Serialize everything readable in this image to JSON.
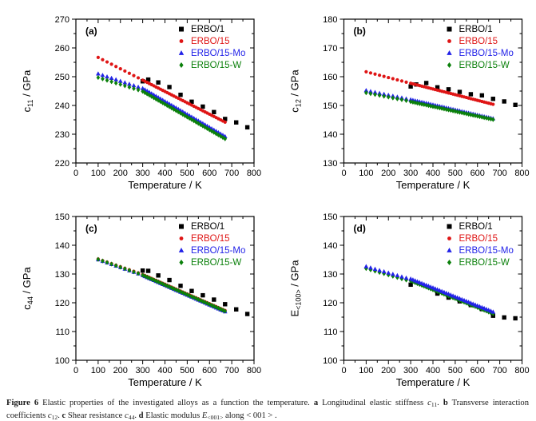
{
  "colors": {
    "axis": "#000000",
    "black": "#000000",
    "red": "#df1515",
    "blue": "#2222e8",
    "green": "#0b800b"
  },
  "legend": [
    {
      "label": "ERBO/1",
      "marker": "square",
      "color_key": "black"
    },
    {
      "label": "ERBO/15",
      "marker": "circle",
      "color_key": "red"
    },
    {
      "label": "ERBO/15-Mo",
      "marker": "triangle",
      "color_key": "blue"
    },
    {
      "label": "ERBO/15-W",
      "marker": "diamond",
      "color_key": "green"
    }
  ],
  "chart_data": [
    {
      "type": "scatter",
      "panel_label": "(a)",
      "title": "Longitudinal elastic stiffness c11 vs temperature",
      "xlabel": "Temperature / K",
      "ylabel": {
        "base": "c",
        "sub": "11",
        "unit": " / GPa"
      },
      "xlim": [
        0,
        800
      ],
      "ylim": [
        220,
        270
      ],
      "xticks": [
        0,
        100,
        200,
        300,
        400,
        500,
        600,
        700,
        800
      ],
      "yticks": [
        220,
        230,
        240,
        250,
        260,
        270
      ],
      "x_minor_step": 50,
      "y_minor_step": 5,
      "grid": false,
      "legend_position": "top-right",
      "series": [
        {
          "name": "ERBO/1",
          "marker": "square",
          "color_key": "black",
          "points": [
            [
              300,
              248.4
            ],
            [
              325,
              249.0
            ],
            [
              370,
              248.0
            ],
            [
              420,
              246.4
            ],
            [
              470,
              243.7
            ],
            [
              520,
              241.3
            ],
            [
              570,
              239.6
            ],
            [
              620,
              237.7
            ],
            [
              670,
              235.3
            ],
            [
              720,
              234.1
            ],
            [
              770,
              232.4
            ]
          ]
        },
        {
          "name": "ERBO/15",
          "marker": "circle",
          "color_key": "red",
          "segments": [
            {
              "x0": 100,
              "x1": 280,
              "step": 20,
              "y0": 256.7,
              "y1": 249.6
            },
            {
              "x0": 300,
              "x1": 670,
              "step": 10,
              "y0": 248.8,
              "y1": 234.2
            }
          ]
        },
        {
          "name": "ERBO/15-Mo",
          "marker": "triangle",
          "color_key": "blue",
          "segments": [
            {
              "x0": 100,
              "x1": 280,
              "step": 20,
              "y0": 251.0,
              "y1": 246.4
            },
            {
              "x0": 300,
              "x1": 670,
              "step": 10,
              "y0": 245.9,
              "y1": 229.2
            }
          ]
        },
        {
          "name": "ERBO/15-W",
          "marker": "diamond",
          "color_key": "green",
          "segments": [
            {
              "x0": 100,
              "x1": 280,
              "step": 20,
              "y0": 249.7,
              "y1": 245.4
            },
            {
              "x0": 300,
              "x1": 670,
              "step": 10,
              "y0": 244.9,
              "y1": 228.4
            }
          ]
        }
      ]
    },
    {
      "type": "scatter",
      "panel_label": "(b)",
      "title": "Transverse interaction coefficient c12 vs temperature",
      "xlabel": "Temperature / K",
      "ylabel": {
        "base": "c",
        "sub": "12",
        "unit": " / GPa"
      },
      "xlim": [
        0,
        800
      ],
      "ylim": [
        130,
        180
      ],
      "xticks": [
        0,
        100,
        200,
        300,
        400,
        500,
        600,
        700,
        800
      ],
      "yticks": [
        130,
        140,
        150,
        160,
        170,
        180
      ],
      "x_minor_step": 50,
      "y_minor_step": 5,
      "grid": false,
      "legend_position": "top-right",
      "series": [
        {
          "name": "ERBO/1",
          "marker": "square",
          "color_key": "black",
          "points": [
            [
              300,
              156.6
            ],
            [
              325,
              157.3
            ],
            [
              370,
              157.8
            ],
            [
              420,
              156.3
            ],
            [
              470,
              155.6
            ],
            [
              520,
              154.7
            ],
            [
              570,
              153.9
            ],
            [
              620,
              153.5
            ],
            [
              670,
              152.3
            ],
            [
              720,
              151.4
            ],
            [
              770,
              150.2
            ]
          ]
        },
        {
          "name": "ERBO/15",
          "marker": "circle",
          "color_key": "red",
          "segments": [
            {
              "x0": 100,
              "x1": 280,
              "step": 20,
              "y0": 161.7,
              "y1": 158.1
            },
            {
              "x0": 300,
              "x1": 670,
              "step": 10,
              "y0": 157.7,
              "y1": 150.4
            }
          ]
        },
        {
          "name": "ERBO/15-Mo",
          "marker": "triangle",
          "color_key": "blue",
          "segments": [
            {
              "x0": 100,
              "x1": 280,
              "step": 20,
              "y0": 155.2,
              "y1": 152.3
            },
            {
              "x0": 300,
              "x1": 670,
              "step": 10,
              "y0": 152.0,
              "y1": 145.4
            }
          ]
        },
        {
          "name": "ERBO/15-W",
          "marker": "diamond",
          "color_key": "green",
          "segments": [
            {
              "x0": 100,
              "x1": 280,
              "step": 20,
              "y0": 154.4,
              "y1": 151.7
            },
            {
              "x0": 300,
              "x1": 670,
              "step": 10,
              "y0": 151.3,
              "y1": 145.1
            }
          ]
        }
      ]
    },
    {
      "type": "scatter",
      "panel_label": "(c)",
      "title": "Shear resistance c44 vs temperature",
      "xlabel": "Temperature / K",
      "ylabel": {
        "base": "c",
        "sub": "44",
        "unit": " / GPa"
      },
      "xlim": [
        0,
        800
      ],
      "ylim": [
        100,
        150
      ],
      "xticks": [
        0,
        100,
        200,
        300,
        400,
        500,
        600,
        700,
        800
      ],
      "yticks": [
        100,
        110,
        120,
        130,
        140,
        150
      ],
      "x_minor_step": 50,
      "y_minor_step": 5,
      "grid": false,
      "legend_position": "top-right",
      "series": [
        {
          "name": "ERBO/1",
          "marker": "square",
          "color_key": "black",
          "points": [
            [
              300,
              131.2
            ],
            [
              325,
              131.1
            ],
            [
              370,
              129.5
            ],
            [
              420,
              127.9
            ],
            [
              470,
              125.9
            ],
            [
              520,
              124.1
            ],
            [
              570,
              122.6
            ],
            [
              620,
              121.1
            ],
            [
              670,
              119.5
            ],
            [
              720,
              117.7
            ],
            [
              770,
              116.1
            ]
          ]
        },
        {
          "name": "ERBO/15",
          "marker": "circle",
          "color_key": "red",
          "segments": [
            {
              "x0": 100,
              "x1": 280,
              "step": 20,
              "y0": 135.2,
              "y1": 130.4
            },
            {
              "x0": 300,
              "x1": 670,
              "step": 10,
              "y0": 129.8,
              "y1": 117.3
            }
          ]
        },
        {
          "name": "ERBO/15-Mo",
          "marker": "triangle",
          "color_key": "blue",
          "segments": [
            {
              "x0": 100,
              "x1": 280,
              "step": 20,
              "y0": 135.0,
              "y1": 130.1
            },
            {
              "x0": 300,
              "x1": 670,
              "step": 10,
              "y0": 129.5,
              "y1": 116.9
            }
          ]
        },
        {
          "name": "ERBO/15-W",
          "marker": "diamond",
          "color_key": "green",
          "segments": [
            {
              "x0": 100,
              "x1": 280,
              "step": 20,
              "y0": 135.1,
              "y1": 130.2
            },
            {
              "x0": 300,
              "x1": 670,
              "step": 10,
              "y0": 129.6,
              "y1": 117.1
            }
          ]
        }
      ]
    },
    {
      "type": "scatter",
      "panel_label": "(d)",
      "title": "Elastic modulus E<100> vs temperature",
      "xlabel": "Temperature / K",
      "ylabel": {
        "base": "E",
        "sub": "<100>",
        "unit": " / GPa"
      },
      "xlim": [
        0,
        800
      ],
      "ylim": [
        100,
        150
      ],
      "xticks": [
        0,
        100,
        200,
        300,
        400,
        500,
        600,
        700,
        800
      ],
      "yticks": [
        100,
        110,
        120,
        130,
        140,
        150
      ],
      "x_minor_step": 50,
      "y_minor_step": 5,
      "grid": false,
      "legend_position": "top-right",
      "series": [
        {
          "name": "ERBO/1",
          "marker": "square",
          "color_key": "black",
          "points": [
            [
              300,
              126.3
            ],
            [
              420,
              123.2
            ],
            [
              470,
              121.8
            ],
            [
              520,
              120.5
            ],
            [
              570,
              119.2
            ],
            [
              620,
              117.8
            ],
            [
              670,
              115.5
            ],
            [
              720,
              114.9
            ],
            [
              770,
              114.6
            ]
          ]
        },
        {
          "name": "ERBO/15",
          "marker": "circle",
          "color_key": "red",
          "segments": [
            {
              "x0": 100,
              "x1": 280,
              "step": 20,
              "y0": 132.1,
              "y1": 128.1
            },
            {
              "x0": 300,
              "x1": 670,
              "step": 10,
              "y0": 127.8,
              "y1": 116.4
            }
          ]
        },
        {
          "name": "ERBO/15-W",
          "marker": "diamond",
          "color_key": "green",
          "segments": [
            {
              "x0": 100,
              "x1": 280,
              "step": 20,
              "y0": 131.9,
              "y1": 127.9
            },
            {
              "x0": 300,
              "x1": 670,
              "step": 10,
              "y0": 127.6,
              "y1": 116.2
            }
          ]
        },
        {
          "name": "ERBO/15-Mo",
          "marker": "triangle",
          "color_key": "blue",
          "segments": [
            {
              "x0": 100,
              "x1": 280,
              "step": 20,
              "y0": 132.6,
              "y1": 128.6
            },
            {
              "x0": 300,
              "x1": 670,
              "step": 10,
              "y0": 128.3,
              "y1": 116.8
            }
          ]
        }
      ]
    }
  ],
  "caption": {
    "parts": [
      {
        "t": "Figure 6",
        "b": 1
      },
      {
        "t": "  Elastic properties of the investigated alloys as a function the temperature. "
      },
      {
        "t": "a",
        "b": 1
      },
      {
        "t": " Longitudinal elastic stiffness "
      },
      {
        "t": "c",
        "i": 1
      },
      {
        "t": "11",
        "sub": 1
      },
      {
        "t": ". "
      },
      {
        "t": "b",
        "b": 1
      },
      {
        "t": " Transverse interaction coefficients "
      },
      {
        "t": "c",
        "i": 1
      },
      {
        "t": "12",
        "sub": 1
      },
      {
        "t": ". "
      },
      {
        "t": "c",
        "b": 1
      },
      {
        "t": " Shear resistance "
      },
      {
        "t": "c",
        "i": 1
      },
      {
        "t": "44",
        "sub": 1
      },
      {
        "t": ". "
      },
      {
        "t": "d",
        "b": 1
      },
      {
        "t": " Elastic modulus "
      },
      {
        "t": "E",
        "i": 1
      },
      {
        "t": "<001>",
        "sub": 1
      },
      {
        "t": " along < 001 > ."
      }
    ]
  }
}
